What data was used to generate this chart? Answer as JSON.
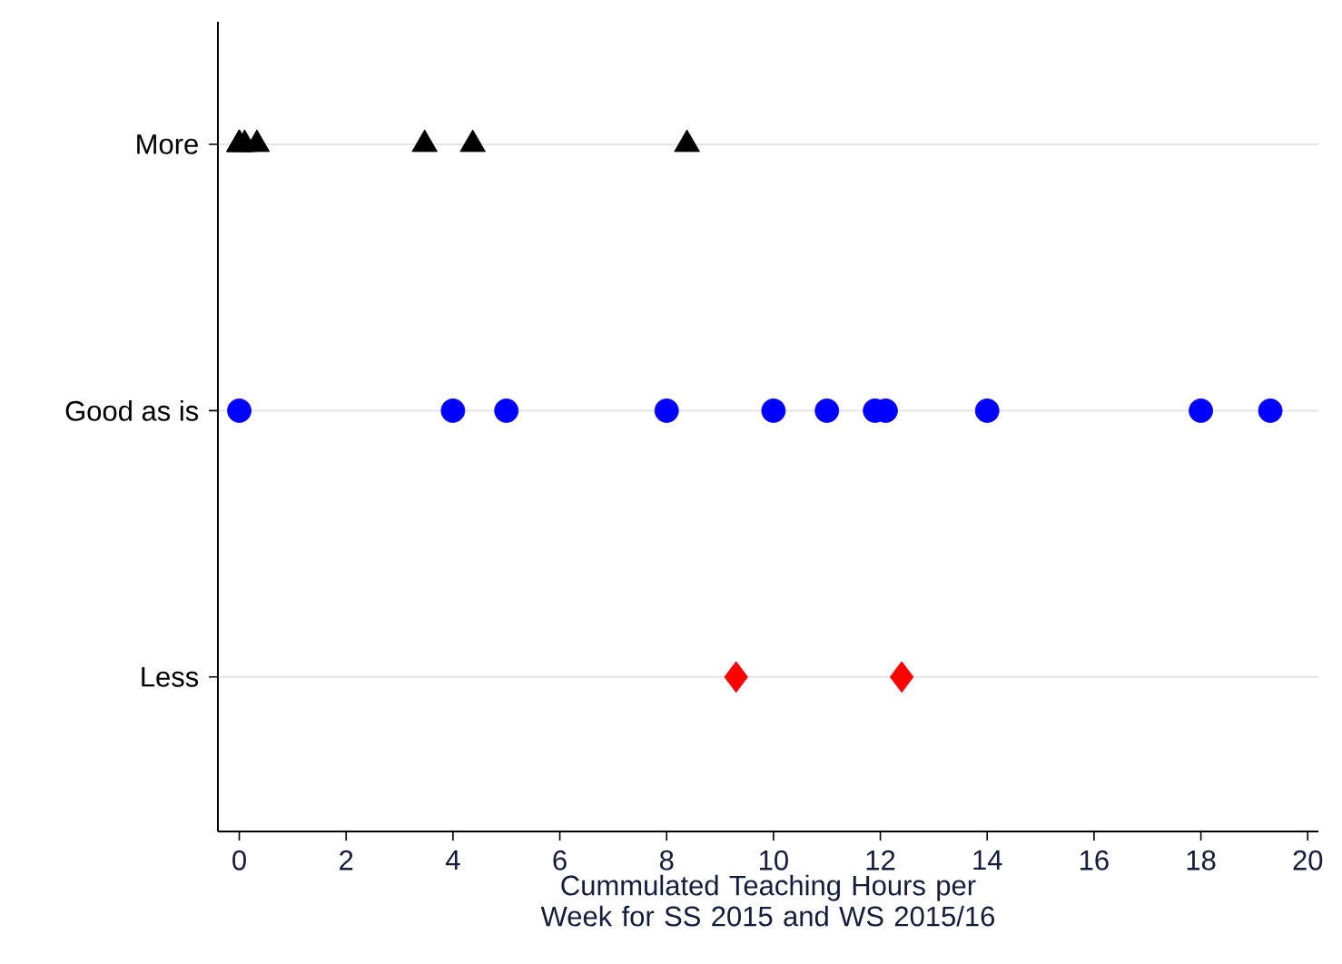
{
  "chart_data": {
    "type": "scatter",
    "orientation": "horizontal",
    "xlabel": "Cummulated Teaching Hours per Week for SS 2015 and WS 2015/16",
    "categories": [
      "More",
      "Good as is",
      "Less"
    ],
    "xlim": [
      -0.4,
      20.2
    ],
    "xticks": [
      0,
      2,
      4,
      6,
      8,
      10,
      12,
      14,
      16,
      18,
      20
    ],
    "grid": "y",
    "series": [
      {
        "color": "#000000",
        "marker": "triangle",
        "x": [
          "More",
          "More",
          "More",
          "More",
          "More",
          "More",
          "More",
          "More"
        ],
        "values": [
          0,
          0,
          0,
          0.33,
          0.1,
          3.47,
          4.37,
          8.38
        ]
      },
      {
        "color": "#0000ff",
        "marker": "circle",
        "x": [
          "Good as is",
          "Good as is",
          "Good as is",
          "Good as is",
          "Good as is",
          "Good as is",
          "Good as is",
          "Good as is",
          "Good as is",
          "Good as is",
          "Good as is"
        ],
        "values": [
          0,
          4,
          5,
          8,
          10,
          11,
          11.9,
          12.1,
          14,
          18,
          19.3
        ]
      },
      {
        "color": "#ff0000",
        "marker": "diamond",
        "x": [
          "Less",
          "Less"
        ],
        "values": [
          9.3,
          12.4
        ]
      }
    ]
  }
}
